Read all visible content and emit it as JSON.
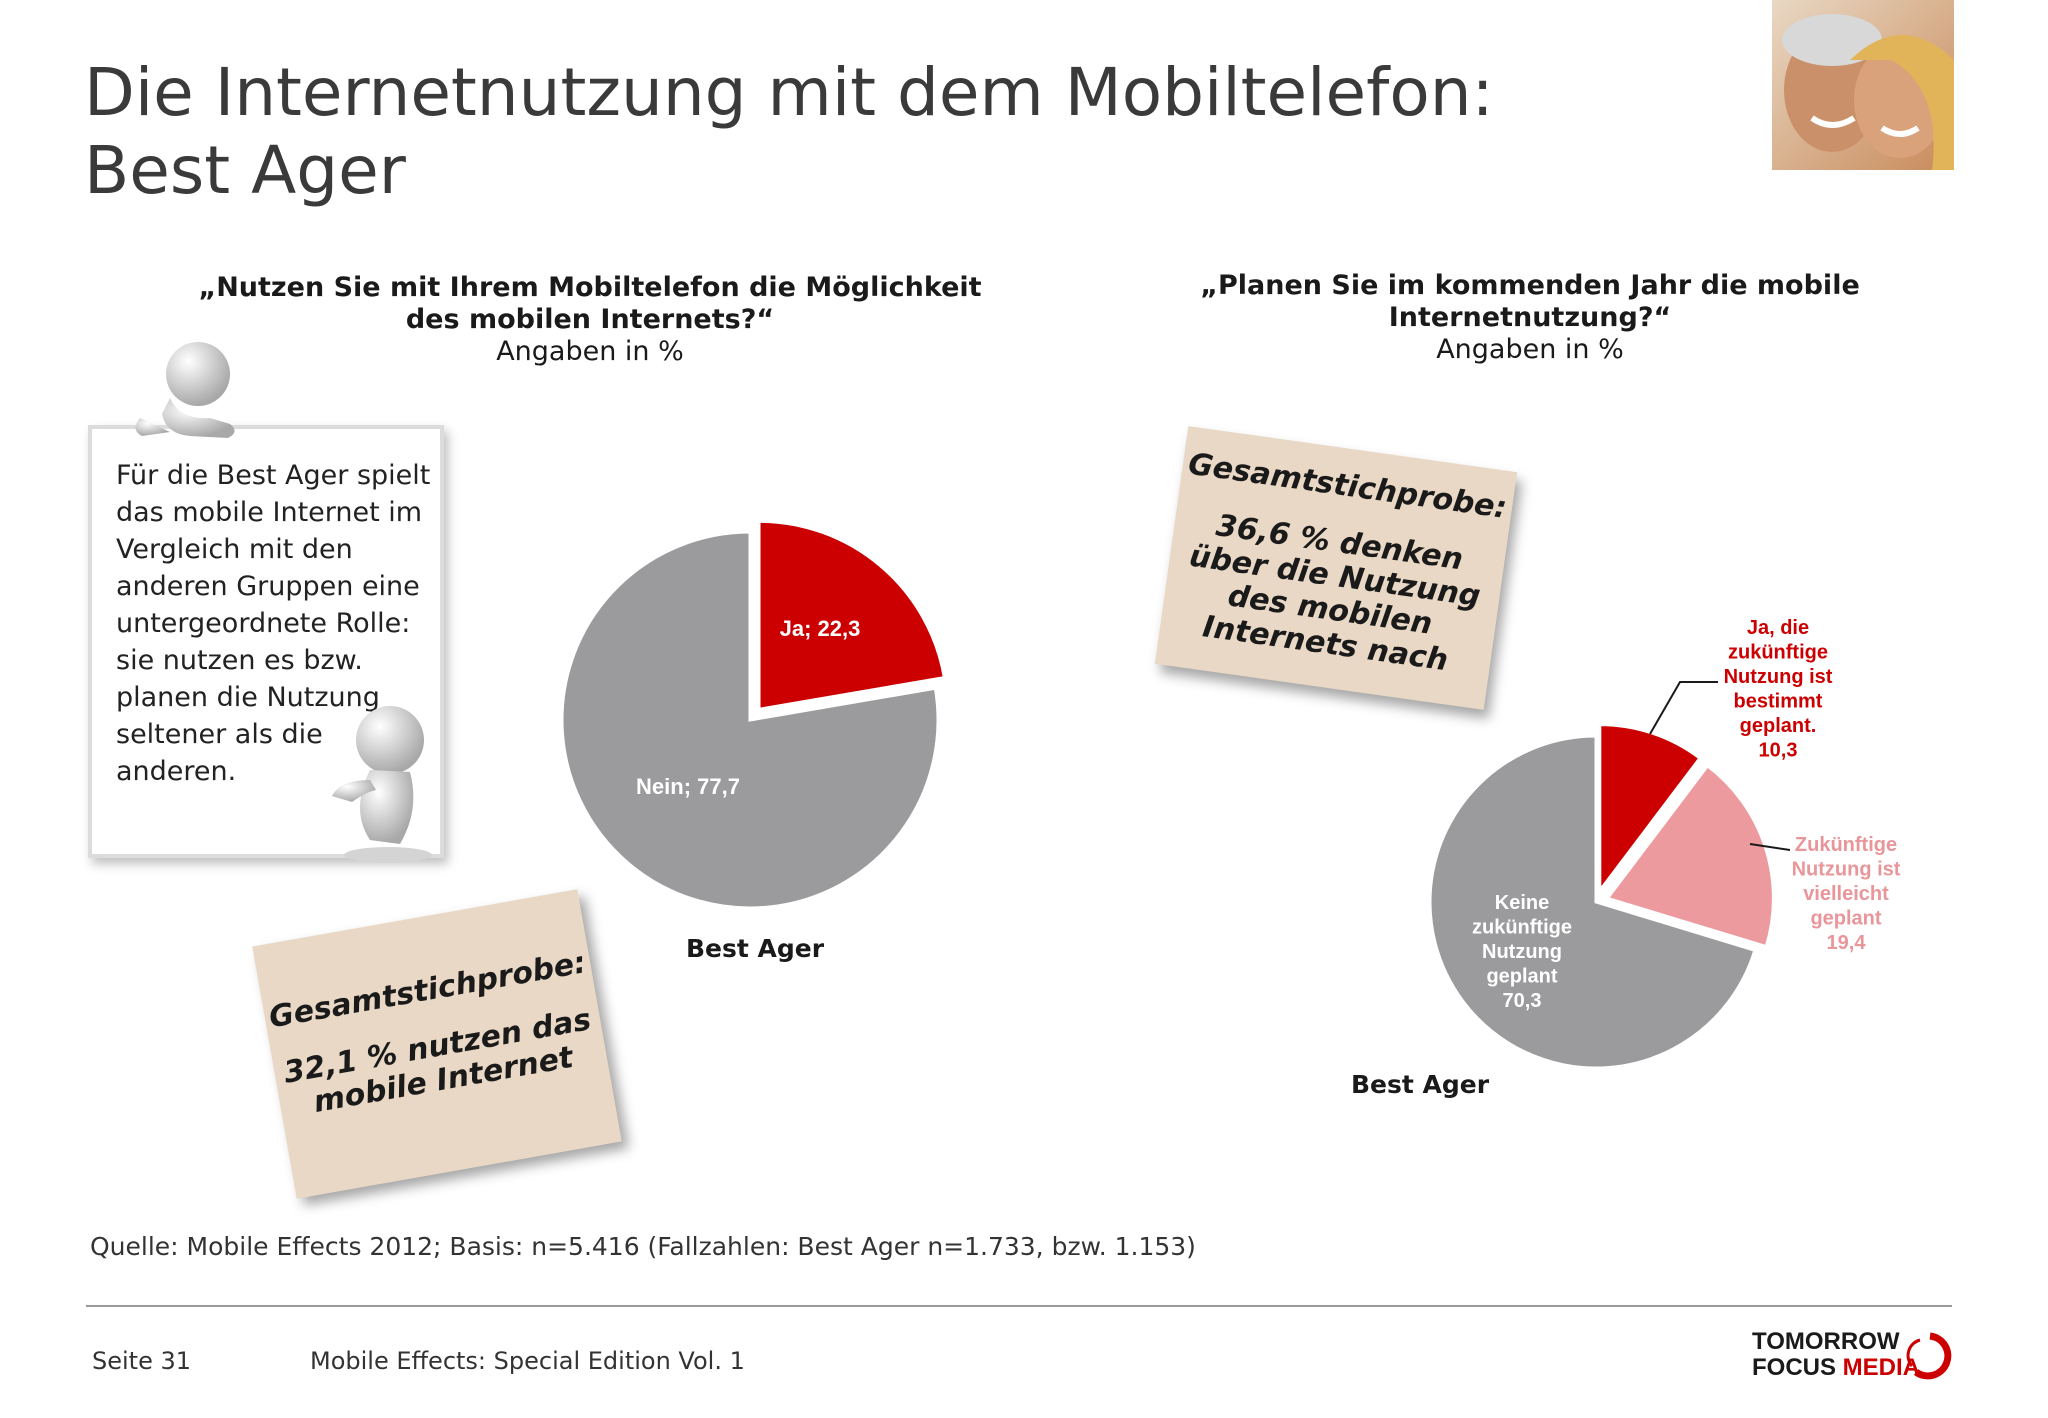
{
  "page": {
    "title_line1": "Die Internetnutzung mit dem Mobiltelefon:",
    "title_line2": "Best Ager"
  },
  "left": {
    "question_line1": "„Nutzen Sie mit Ihrem Mobiltelefon die Möglichkeit",
    "question_line2": "des mobilen Internets?“",
    "unit": "Angaben in %",
    "textbox": "Für die Best Ager spielt das mobile Internet im Vergleich mit den anderen Gruppen eine untergeordnete Rolle: sie nutzen es bzw. planen die Nutzung seltener als die anderen.",
    "note_title": "Gesamtstichprobe:",
    "note_line1": "32,1 % nutzen das",
    "note_line2": "mobile Internet",
    "category": "Best Ager"
  },
  "right": {
    "question_line1": "„Planen Sie im kommenden Jahr die mobile",
    "question_line2": "Internetnutzung?“",
    "unit": "Angaben in %",
    "note_title": "Gesamtstichprobe:",
    "note_line1": "36,6 % denken",
    "note_line2": "über die Nutzung",
    "note_line3": "des mobilen",
    "note_line4": "Internets nach",
    "category": "Best Ager"
  },
  "chart_data": [
    {
      "type": "pie",
      "title": "„Nutzen Sie mit Ihrem Mobiltelefon die Möglichkeit des mobilen Internets?“",
      "category": "Best Ager",
      "slices": [
        {
          "label": "Ja; 22,3",
          "value": 22.3,
          "color": "#cc0000",
          "label_color": "#ffffff"
        },
        {
          "label": "Nein; 77,7",
          "value": 77.7,
          "color": "#9b9a9c",
          "label_color": "#ffffff"
        }
      ]
    },
    {
      "type": "pie",
      "title": "„Planen Sie im kommenden Jahr die mobile Internetnutzung?“",
      "category": "Best Ager",
      "slices": [
        {
          "label": [
            "Ja, die",
            "zukünftige",
            "Nutzung ist",
            "bestimmt",
            "geplant.",
            "10,3"
          ],
          "value": 10.3,
          "color": "#cc0000",
          "label_color": "#cc0000"
        },
        {
          "label": [
            "Zukünftige",
            "Nutzung ist",
            "vielleicht",
            "geplant",
            "19,4"
          ],
          "value": 19.4,
          "color": "#ec9a9e",
          "label_color": "#e8969a"
        },
        {
          "label": [
            "Keine",
            "zukünftige",
            "Nutzung",
            "geplant",
            "70,3"
          ],
          "value": 70.3,
          "color": "#9b9a9c",
          "label_color": "#ffffff"
        }
      ]
    }
  ],
  "footer": {
    "source": "Quelle: Mobile Effects 2012; Basis: n=5.416 (Fallzahlen: Best Ager n=1.733, bzw. 1.153)",
    "page": "Seite 31",
    "edition": "Mobile Effects: Special Edition Vol. 1",
    "logo_line1": "TOMORROW",
    "logo_line2a": "FOCUS",
    "logo_line2b": "MEDIA"
  },
  "colors": {
    "brand_red": "#cc0000",
    "grey_slice": "#9b9a9c",
    "pink_slice": "#ec9a9e",
    "note_bg": "#e8d8c5"
  }
}
